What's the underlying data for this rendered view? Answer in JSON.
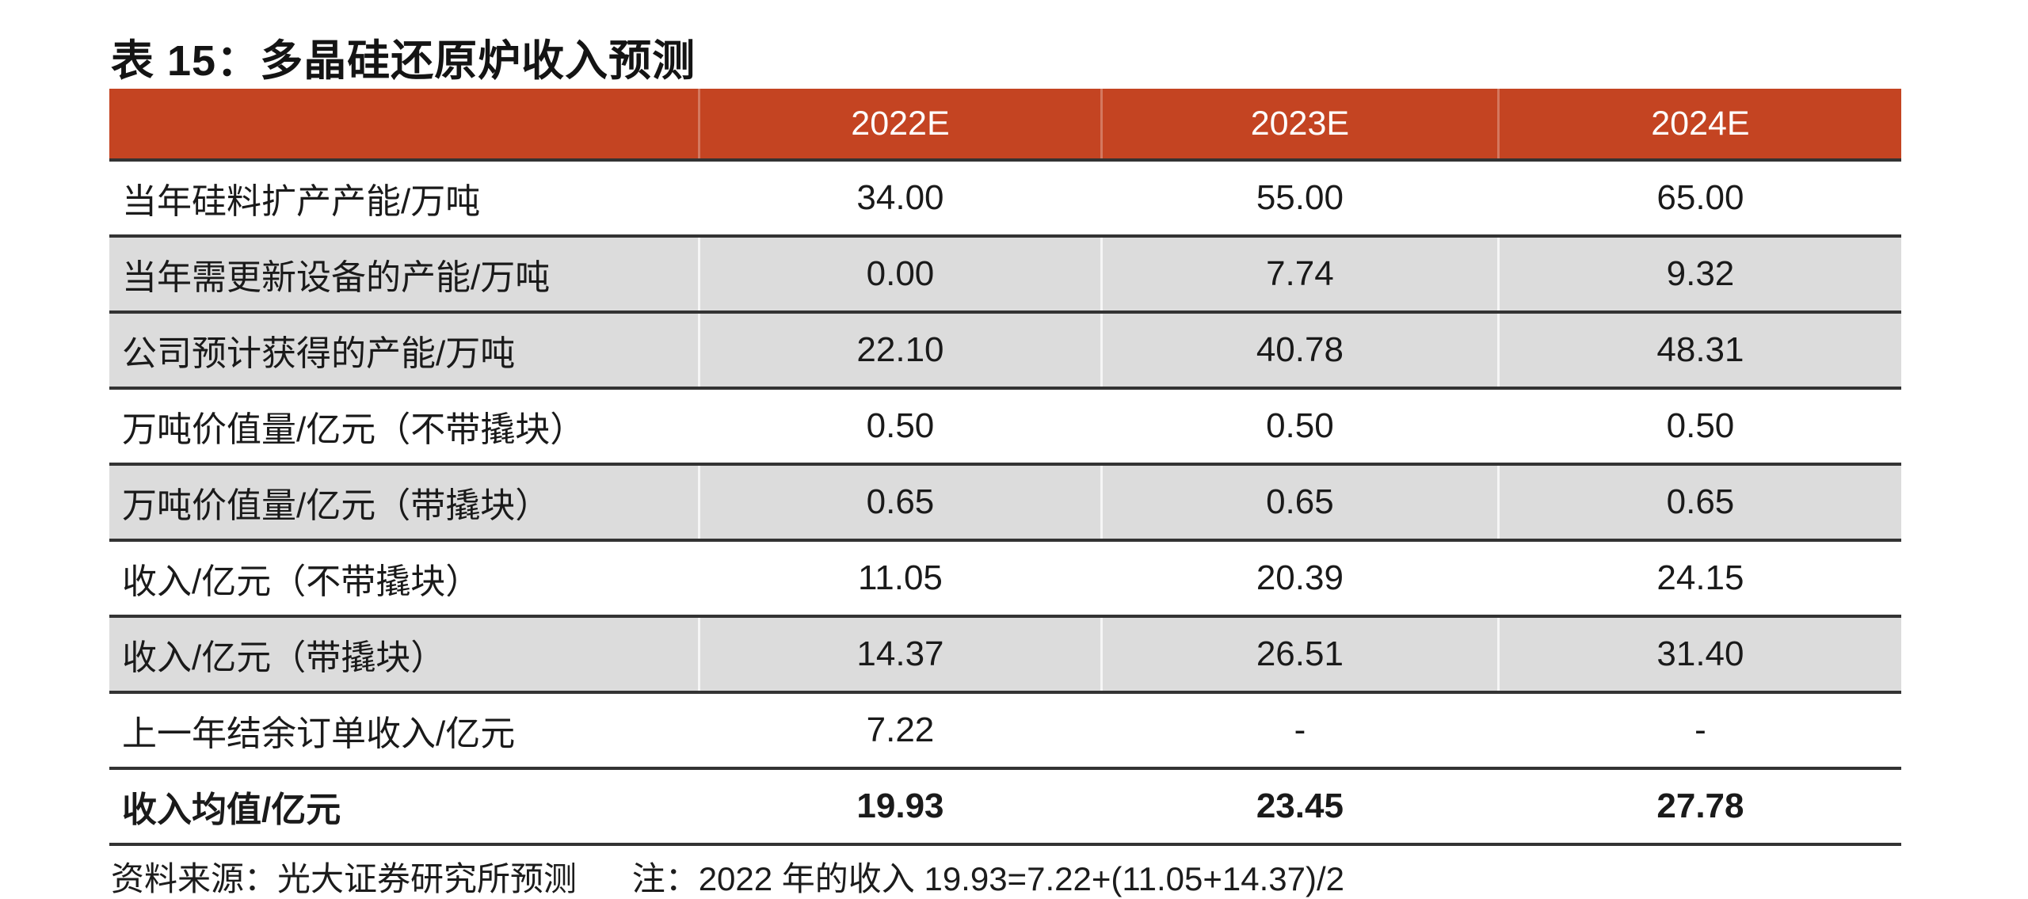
{
  "colors": {
    "header_bg": "#c44422",
    "shaded_row_bg": "#dcdcdc",
    "separator_line": "#333333",
    "header_text": "#ffffff",
    "body_text": "#1a1a1a"
  },
  "table": {
    "title": "表 15：多晶硅还原炉收入预测",
    "header": {
      "columns": [
        "",
        "2022E",
        "2023E",
        "2024E"
      ]
    },
    "rows": [
      {
        "label": "当年硅料扩产产能/万吨",
        "values": [
          "34.00",
          "55.00",
          "65.00"
        ],
        "shaded": false,
        "bold": false
      },
      {
        "label": "当年需更新设备的产能/万吨",
        "values": [
          "0.00",
          "7.74",
          "9.32"
        ],
        "shaded": true,
        "bold": false
      },
      {
        "label": "公司预计获得的产能/万吨",
        "values": [
          "22.10",
          "40.78",
          "48.31"
        ],
        "shaded": true,
        "bold": false
      },
      {
        "label": "万吨价值量/亿元（不带撬块）",
        "values": [
          "0.50",
          "0.50",
          "0.50"
        ],
        "shaded": false,
        "bold": false
      },
      {
        "label": "万吨价值量/亿元（带撬块）",
        "values": [
          "0.65",
          "0.65",
          "0.65"
        ],
        "shaded": true,
        "bold": false
      },
      {
        "label": "收入/亿元（不带撬块）",
        "values": [
          "11.05",
          "20.39",
          "24.15"
        ],
        "shaded": false,
        "bold": false
      },
      {
        "label": "收入/亿元（带撬块）",
        "values": [
          "14.37",
          "26.51",
          "31.40"
        ],
        "shaded": true,
        "bold": false
      },
      {
        "label": "上一年结余订单收入/亿元",
        "values": [
          "7.22",
          "-",
          "-"
        ],
        "shaded": false,
        "bold": false
      },
      {
        "label": "收入均值/亿元",
        "values": [
          "19.93",
          "23.45",
          "27.78"
        ],
        "shaded": false,
        "bold": true
      }
    ],
    "footer": {
      "source": "资料来源：光大证券研究所预测",
      "note": "注：2022 年的收入 19.93=7.22+(11.05+14.37)/2"
    }
  }
}
